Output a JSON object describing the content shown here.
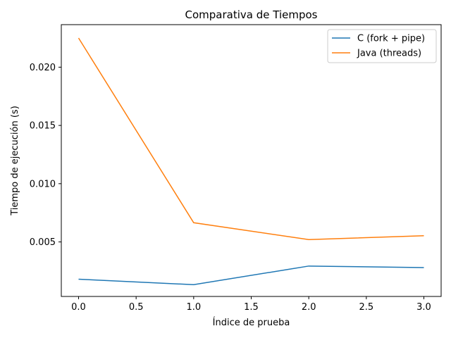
{
  "chart_data": {
    "type": "line",
    "title": "Comparativa de Tiempos",
    "xlabel": "Índice de prueba",
    "ylabel": "Tiempo de ejecución (s)",
    "xlim": [
      -0.15,
      3.15
    ],
    "ylim": [
      0.00032,
      0.02365
    ],
    "x_ticks": [
      0.0,
      0.5,
      1.0,
      1.5,
      2.0,
      2.5,
      3.0
    ],
    "x_tick_labels": [
      "0.0",
      "0.5",
      "1.0",
      "1.5",
      "2.0",
      "2.5",
      "3.0"
    ],
    "y_ticks": [
      0.005,
      0.01,
      0.015,
      0.02
    ],
    "y_tick_labels": [
      "0.005",
      "0.010",
      "0.015",
      "0.020"
    ],
    "grid": false,
    "legend_position": "top-right",
    "x": [
      0,
      1,
      2,
      3
    ],
    "series": [
      {
        "name": "C (fork + pipe)",
        "color": "#1f77b4",
        "values": [
          0.0018,
          0.00133,
          0.00293,
          0.0028
        ]
      },
      {
        "name": "Java (threads)",
        "color": "#ff7f0e",
        "values": [
          0.0225,
          0.00665,
          0.0052,
          0.00553
        ]
      }
    ]
  }
}
